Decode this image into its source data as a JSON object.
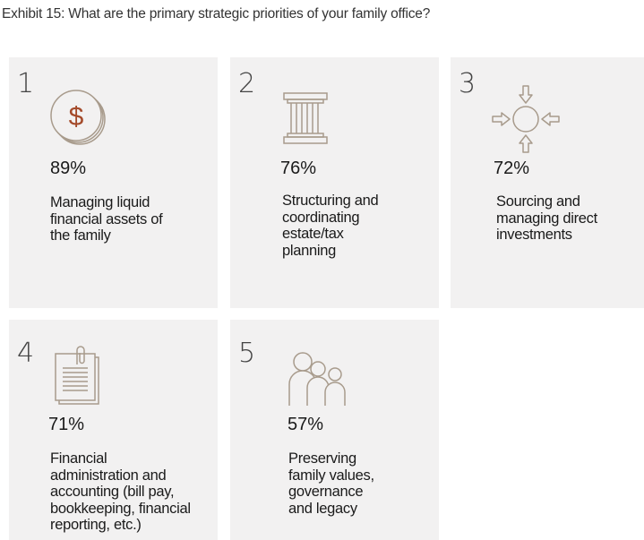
{
  "title": "Exhibit 15: What are the primary strategic priorities of your family office?",
  "priorities": [
    {
      "rank": "1",
      "percent": "89%",
      "lines": [
        "Managing liquid",
        "financial assets of",
        "the family"
      ],
      "icon": "coins-dollar-icon"
    },
    {
      "rank": "2",
      "percent": "76%",
      "lines": [
        "Structuring and",
        "coordinating",
        "estate/tax",
        "planning"
      ],
      "icon": "pillar-icon"
    },
    {
      "rank": "3",
      "percent": "72%",
      "lines": [
        "Sourcing and",
        "managing direct",
        "investments"
      ],
      "icon": "converging-arrows-icon"
    },
    {
      "rank": "4",
      "percent": "71%",
      "lines": [
        "Financial",
        "administration and",
        "accounting (bill pay,",
        "bookkeeping, financial",
        "reporting, etc.)"
      ],
      "icon": "clipboard-document-icon"
    },
    {
      "rank": "5",
      "percent": "57%",
      "lines": [
        "Preserving",
        "family values,",
        "governance",
        "and legacy"
      ],
      "icon": "family-people-icon"
    }
  ],
  "colors": {
    "card_bg": "#f2f1f1",
    "icon_stroke": "#a89b8c"
  }
}
